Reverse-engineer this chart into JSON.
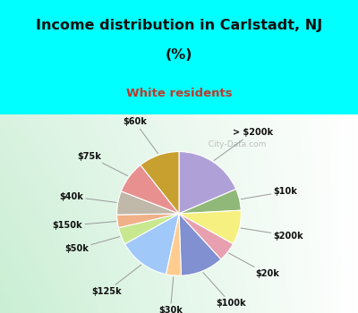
{
  "title_line1": "Income distribution in Carlstadt, NJ",
  "title_line2": "(%)",
  "subtitle": "White residents",
  "title_color": "#111111",
  "subtitle_color": "#c0392b",
  "bg_top_color": "#00ffff",
  "labels": [
    "> $200k",
    "$10k",
    "$200k",
    "$20k",
    "$100k",
    "$30k",
    "$125k",
    "$50k",
    "$150k",
    "$40k",
    "$75k",
    "$60k"
  ],
  "values": [
    16.5,
    5.0,
    8.0,
    4.5,
    10.0,
    3.5,
    12.0,
    4.0,
    3.0,
    5.5,
    7.5,
    9.5
  ],
  "colors": [
    "#b0a0d8",
    "#90b878",
    "#f5f080",
    "#e8a0b0",
    "#8090d0",
    "#ffcc90",
    "#a0c8f8",
    "#c8e890",
    "#f0b088",
    "#c0b8a8",
    "#e89090",
    "#c8a030"
  ],
  "label_fontsize": 7.0,
  "label_color": "#111111",
  "watermark": "  City-Data.com",
  "watermark_color": "#aaaaaa"
}
